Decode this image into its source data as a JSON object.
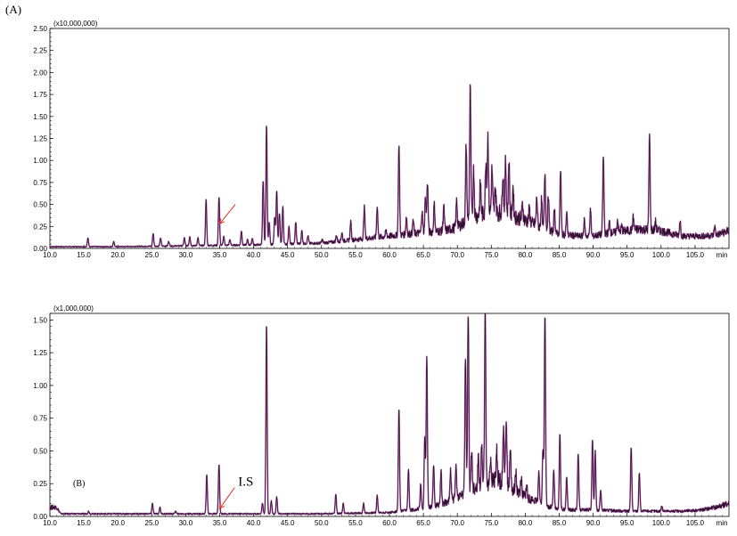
{
  "page_label": "(A)",
  "chart_data": [
    {
      "type": "line",
      "panel_label": "(A)",
      "inner_label": "",
      "y_multiplier": "(x10,000,000)",
      "x_unit": "min",
      "xlim": [
        10.0,
        110.0
      ],
      "ylim": [
        0,
        2.5
      ],
      "x_ticks": [
        "10.0",
        "15.0",
        "20.0",
        "25.0",
        "30.0",
        "35.0",
        "40.0",
        "45.0",
        "50.0",
        "55.0",
        "60.0",
        "65.0",
        "70.0",
        "75.0",
        "80.0",
        "85.0",
        "90.0",
        "95.0",
        "100.0",
        "105.0"
      ],
      "x_tick_values": [
        10,
        15,
        20,
        25,
        30,
        35,
        40,
        45,
        50,
        55,
        60,
        65,
        70,
        75,
        80,
        85,
        90,
        95,
        100,
        105
      ],
      "y_ticks": [
        "0.00",
        "0.25",
        "0.50",
        "0.75",
        "1.00",
        "1.25",
        "1.50",
        "1.75",
        "2.00",
        "2.25",
        "2.50"
      ],
      "y_tick_values": [
        0,
        0.25,
        0.5,
        0.75,
        1.0,
        1.25,
        1.5,
        1.75,
        2.0,
        2.25,
        2.5
      ],
      "grid": false,
      "line_color": "#2a0f2a",
      "accent_color": "#a0409a",
      "arrow_color": "#e0302a",
      "arrow": {
        "x_tip": 35.0,
        "y_tip": 0.28,
        "x_tail": 37.3,
        "y_tail": 0.5,
        "label": ""
      },
      "baseline": [
        [
          10,
          0.02
        ],
        [
          20,
          0.02
        ],
        [
          30,
          0.03
        ],
        [
          40,
          0.04
        ],
        [
          45,
          0.05
        ],
        [
          50,
          0.06
        ],
        [
          55,
          0.1
        ],
        [
          60,
          0.14
        ],
        [
          65,
          0.18
        ],
        [
          68,
          0.2
        ],
        [
          70,
          0.24
        ],
        [
          72,
          0.35
        ],
        [
          75,
          0.42
        ],
        [
          77,
          0.4
        ],
        [
          80,
          0.32
        ],
        [
          83,
          0.22
        ],
        [
          85,
          0.16
        ],
        [
          88,
          0.14
        ],
        [
          90,
          0.14
        ],
        [
          92,
          0.17
        ],
        [
          95,
          0.2
        ],
        [
          97,
          0.22
        ],
        [
          100,
          0.2
        ],
        [
          103,
          0.14
        ],
        [
          106,
          0.14
        ],
        [
          108,
          0.15
        ],
        [
          110,
          0.2
        ]
      ],
      "peaks": [
        [
          15.6,
          0.12
        ],
        [
          19.4,
          0.08
        ],
        [
          25.2,
          0.17
        ],
        [
          26.3,
          0.12
        ],
        [
          27.5,
          0.08
        ],
        [
          29.8,
          0.12
        ],
        [
          30.6,
          0.14
        ],
        [
          31.8,
          0.12
        ],
        [
          33.0,
          0.55
        ],
        [
          34.9,
          0.59
        ],
        [
          35.6,
          0.14
        ],
        [
          36.5,
          0.1
        ],
        [
          38.2,
          0.2
        ],
        [
          39.1,
          0.1
        ],
        [
          39.8,
          0.12
        ],
        [
          41.4,
          0.77
        ],
        [
          41.9,
          1.4
        ],
        [
          42.3,
          0.3
        ],
        [
          43.1,
          0.35
        ],
        [
          43.4,
          0.66
        ],
        [
          43.8,
          0.4
        ],
        [
          44.3,
          0.47
        ],
        [
          45.2,
          0.25
        ],
        [
          46.2,
          0.3
        ],
        [
          47.1,
          0.2
        ],
        [
          48.0,
          0.14
        ],
        [
          50.1,
          0.1
        ],
        [
          52.2,
          0.15
        ],
        [
          53.0,
          0.18
        ],
        [
          54.3,
          0.3
        ],
        [
          56.3,
          0.47
        ],
        [
          58.2,
          0.48
        ],
        [
          59.5,
          0.2
        ],
        [
          61.4,
          1.18
        ],
        [
          62.5,
          0.36
        ],
        [
          63.5,
          0.32
        ],
        [
          64.8,
          0.42
        ],
        [
          65.3,
          0.58
        ],
        [
          65.6,
          0.76
        ],
        [
          66.6,
          0.5
        ],
        [
          68.0,
          0.48
        ],
        [
          69.9,
          0.55
        ],
        [
          71.3,
          1.17
        ],
        [
          71.9,
          1.82
        ],
        [
          72.4,
          0.9
        ],
        [
          73.4,
          0.75
        ],
        [
          74.2,
          1.0
        ],
        [
          74.5,
          1.28
        ],
        [
          75.1,
          0.9
        ],
        [
          75.6,
          0.7
        ],
        [
          76.7,
          0.85
        ],
        [
          77.1,
          0.99
        ],
        [
          77.6,
          1.0
        ],
        [
          78.2,
          0.7
        ],
        [
          79.6,
          0.5
        ],
        [
          80.6,
          0.45
        ],
        [
          81.7,
          0.58
        ],
        [
          82.4,
          0.55
        ],
        [
          82.9,
          0.86
        ],
        [
          83.4,
          0.6
        ],
        [
          84.3,
          0.45
        ],
        [
          85.2,
          0.89
        ],
        [
          86.1,
          0.4
        ],
        [
          88.7,
          0.32
        ],
        [
          89.6,
          0.44
        ],
        [
          91.5,
          1.04
        ],
        [
          92.4,
          0.3
        ],
        [
          93.6,
          0.33
        ],
        [
          94.2,
          0.25
        ],
        [
          95.9,
          0.35
        ],
        [
          98.3,
          1.29
        ],
        [
          99.2,
          0.3
        ],
        [
          102.8,
          0.32
        ],
        [
          107.9,
          0.25
        ]
      ]
    },
    {
      "type": "line",
      "panel_label": "",
      "inner_label": "(B)",
      "y_multiplier": "(x1,000,000)",
      "x_unit": "min",
      "xlim": [
        10.0,
        110.0
      ],
      "ylim": [
        0,
        1.55
      ],
      "x_ticks": [
        "10.0",
        "15.0",
        "20.0",
        "25.0",
        "30.0",
        "35.0",
        "40.0",
        "45.0",
        "50.0",
        "55.0",
        "60.0",
        "65.0",
        "70.0",
        "75.0",
        "80.0",
        "85.0",
        "90.0",
        "95.0",
        "100.0",
        "105.0"
      ],
      "x_tick_values": [
        10,
        15,
        20,
        25,
        30,
        35,
        40,
        45,
        50,
        55,
        60,
        65,
        70,
        75,
        80,
        85,
        90,
        95,
        100,
        105
      ],
      "y_ticks": [
        "0.00",
        "0.25",
        "0.50",
        "0.75",
        "1.00",
        "1.25",
        "1.50"
      ],
      "y_tick_values": [
        0,
        0.25,
        0.5,
        0.75,
        1.0,
        1.25,
        1.5
      ],
      "grid": false,
      "line_color": "#2a0f2a",
      "accent_color": "#a0409a",
      "arrow_color": "#e0302a",
      "arrow": {
        "x_tip": 35.0,
        "y_tip": 0.06,
        "x_tail": 37.2,
        "y_tail": 0.22,
        "label": "I.S"
      },
      "baseline": [
        [
          10,
          0.07
        ],
        [
          11,
          0.07
        ],
        [
          11.6,
          0.02
        ],
        [
          20,
          0.02
        ],
        [
          30,
          0.02
        ],
        [
          40,
          0.02
        ],
        [
          50,
          0.02
        ],
        [
          60,
          0.03
        ],
        [
          65,
          0.06
        ],
        [
          68,
          0.1
        ],
        [
          70,
          0.15
        ],
        [
          72,
          0.2
        ],
        [
          74,
          0.25
        ],
        [
          76,
          0.28
        ],
        [
          78,
          0.22
        ],
        [
          80,
          0.15
        ],
        [
          83,
          0.08
        ],
        [
          86,
          0.05
        ],
        [
          90,
          0.05
        ],
        [
          95,
          0.04
        ],
        [
          100,
          0.04
        ],
        [
          103,
          0.04
        ],
        [
          106,
          0.05
        ],
        [
          108,
          0.07
        ],
        [
          110,
          0.1
        ]
      ],
      "peaks": [
        [
          15.7,
          0.04
        ],
        [
          25.1,
          0.1
        ],
        [
          26.2,
          0.07
        ],
        [
          28.5,
          0.04
        ],
        [
          33.1,
          0.32
        ],
        [
          34.9,
          0.4
        ],
        [
          41.3,
          0.1
        ],
        [
          41.9,
          1.47
        ],
        [
          42.6,
          0.12
        ],
        [
          43.4,
          0.15
        ],
        [
          52.1,
          0.17
        ],
        [
          53.2,
          0.1
        ],
        [
          56.2,
          0.1
        ],
        [
          58.2,
          0.16
        ],
        [
          61.4,
          0.83
        ],
        [
          62.8,
          0.35
        ],
        [
          64.6,
          0.25
        ],
        [
          65.2,
          0.6
        ],
        [
          65.5,
          1.22
        ],
        [
          66.5,
          0.4
        ],
        [
          67.6,
          0.35
        ],
        [
          69.0,
          0.35
        ],
        [
          69.8,
          0.38
        ],
        [
          71.2,
          1.23
        ],
        [
          71.6,
          1.55
        ],
        [
          72.1,
          0.5
        ],
        [
          73.1,
          0.45
        ],
        [
          73.6,
          0.55
        ],
        [
          74.1,
          1.55
        ],
        [
          74.9,
          0.45
        ],
        [
          75.8,
          0.5
        ],
        [
          76.8,
          0.7
        ],
        [
          77.2,
          0.76
        ],
        [
          77.8,
          0.5
        ],
        [
          78.6,
          0.35
        ],
        [
          79.4,
          0.3
        ],
        [
          80.2,
          0.25
        ],
        [
          82.0,
          0.35
        ],
        [
          82.6,
          0.5
        ],
        [
          82.9,
          1.55
        ],
        [
          84.2,
          0.35
        ],
        [
          85.1,
          0.64
        ],
        [
          86.1,
          0.3
        ],
        [
          87.8,
          0.48
        ],
        [
          89.9,
          0.58
        ],
        [
          90.3,
          0.5
        ],
        [
          91.1,
          0.2
        ],
        [
          95.6,
          0.53
        ],
        [
          96.8,
          0.33
        ],
        [
          100.1,
          0.08
        ]
      ]
    }
  ]
}
